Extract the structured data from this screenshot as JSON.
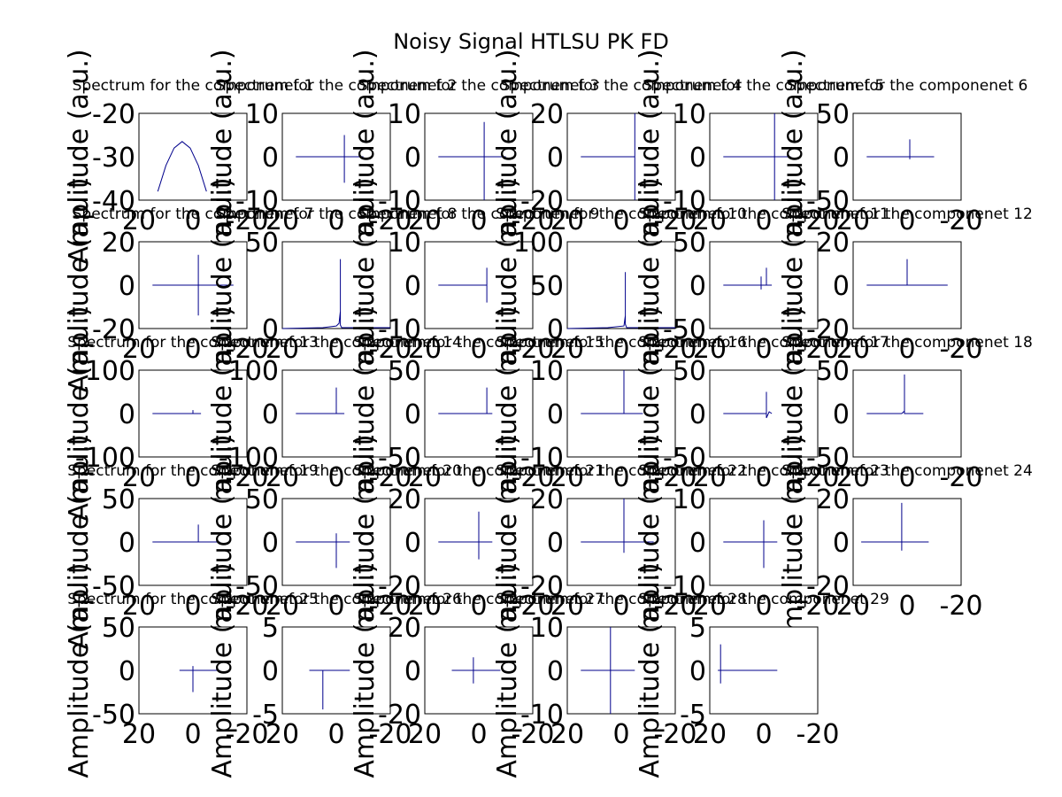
{
  "figure": {
    "title": "Noisy Signal HTLSU PK FD",
    "colors": {
      "line": "#00008B",
      "axes": "#000000",
      "background": "#ffffff"
    }
  },
  "chart_data": [
    {
      "type": "line",
      "title": "Spectrum for the componenet 1",
      "ylabel": "Amplitude (a.u.)",
      "xlim": [
        20,
        -20
      ],
      "xticks": [
        "20",
        "0",
        "-20"
      ],
      "ylim": [
        -40,
        -20
      ],
      "yticks": [
        "-20",
        "-30",
        "-40"
      ],
      "series": [
        {
          "x": [
            13,
            10,
            7,
            4,
            1,
            -2,
            -5
          ],
          "y": [
            -38,
            -32,
            -28,
            -26.5,
            -28,
            -32,
            -38
          ]
        }
      ]
    },
    {
      "type": "line",
      "title": "Spectrum for the componenet 2",
      "ylabel": "Amplitude (a.u.)",
      "xlim": [
        20,
        -20
      ],
      "xticks": [
        "20",
        "0",
        "-20"
      ],
      "ylim": [
        -10,
        10
      ],
      "yticks": [
        "10",
        "0",
        "-10"
      ],
      "series": [
        {
          "x": [
            15,
            -3,
            -3,
            -3,
            -3,
            -3,
            -10
          ],
          "y": [
            0,
            0,
            5,
            -6,
            0,
            0,
            0
          ]
        }
      ]
    },
    {
      "type": "line",
      "title": "Spectrum for the componenet 3",
      "ylabel": "Amplitude (a.u.)",
      "xlim": [
        20,
        -20
      ],
      "xticks": [
        "20",
        "0",
        "-20"
      ],
      "ylim": [
        -10,
        10
      ],
      "yticks": [
        "10",
        "0",
        "-10"
      ],
      "series": [
        {
          "x": [
            15,
            -2,
            -2,
            -2,
            -2,
            -2,
            -10
          ],
          "y": [
            0,
            0,
            8,
            -10,
            0,
            0,
            0
          ]
        }
      ]
    },
    {
      "type": "line",
      "title": "Spectrum for the componenet 4",
      "ylabel": "Amplitude (a.u.)",
      "xlim": [
        20,
        -20
      ],
      "xticks": [
        "20",
        "0",
        "-20"
      ],
      "ylim": [
        -20,
        20
      ],
      "yticks": [
        "20",
        "0",
        "-20"
      ],
      "series": [
        {
          "x": [
            15,
            -5,
            -5,
            -5,
            -5,
            -5
          ],
          "y": [
            0,
            0,
            20,
            -20,
            0,
            0
          ]
        }
      ]
    },
    {
      "type": "line",
      "title": "Spectrum for the componenet 5",
      "ylabel": "Amplitude (a.u.)",
      "xlim": [
        20,
        -20
      ],
      "xticks": [
        "20",
        "0",
        "-20"
      ],
      "ylim": [
        -10,
        10
      ],
      "yticks": [
        "10",
        "0",
        "-10"
      ],
      "series": [
        {
          "x": [
            15,
            -4,
            -4,
            -4,
            -4,
            -4,
            -10
          ],
          "y": [
            0,
            0,
            10,
            -10,
            0,
            0,
            0
          ]
        }
      ]
    },
    {
      "type": "line",
      "title": "Spectrum for the componenet 6",
      "ylabel": "Amplitude (a.u.)",
      "xlim": [
        20,
        -20
      ],
      "xticks": [
        "20",
        "0",
        "-20"
      ],
      "ylim": [
        -50,
        50
      ],
      "yticks": [
        "50",
        "0",
        "-50"
      ],
      "series": [
        {
          "x": [
            15,
            -1,
            -1,
            -1,
            -1,
            -1,
            -10
          ],
          "y": [
            0,
            0,
            20,
            -3,
            0,
            0,
            0
          ]
        }
      ]
    },
    {
      "type": "line",
      "title": "Spectrum for the componenet 7",
      "ylabel": "Amplitude (a.u.)",
      "xlim": [
        20,
        -20
      ],
      "xticks": [
        "20",
        "0",
        "-20"
      ],
      "ylim": [
        -20,
        20
      ],
      "yticks": [
        "20",
        "0",
        "-20"
      ],
      "series": [
        {
          "x": [
            15,
            -2,
            -2,
            -2,
            -2,
            -2,
            -15
          ],
          "y": [
            0,
            0,
            14,
            -14,
            0,
            0,
            0
          ]
        }
      ]
    },
    {
      "type": "line",
      "title": "Spectrum for the componenet 8",
      "ylabel": "Amplitude (a.u.)",
      "xlim": [
        20,
        -20
      ],
      "xticks": [
        "20",
        "0",
        "-20"
      ],
      "ylim": [
        0,
        50
      ],
      "yticks": [
        "50",
        "0"
      ],
      "series": [
        {
          "x": [
            20,
            5,
            0,
            -1,
            -1.5,
            -1.5,
            -1.5,
            -2,
            -20
          ],
          "y": [
            0,
            0.5,
            1.5,
            3,
            10,
            40,
            2,
            0.5,
            0.5
          ]
        }
      ]
    },
    {
      "type": "line",
      "title": "Spectrum for the componenet 9",
      "ylabel": "Amplitude (a.u.)",
      "xlim": [
        20,
        -20
      ],
      "xticks": [
        "20",
        "0",
        "-20"
      ],
      "ylim": [
        -10,
        10
      ],
      "yticks": [
        "10",
        "0",
        "-10"
      ],
      "series": [
        {
          "x": [
            15,
            -3,
            -3,
            -3,
            -3,
            -3
          ],
          "y": [
            0,
            0,
            4,
            -4,
            0,
            0
          ]
        }
      ]
    },
    {
      "type": "line",
      "title": "Spectrum for the componenet 10",
      "ylabel": "Amplitude (a.u.)",
      "xlim": [
        20,
        -20
      ],
      "xticks": [
        "20",
        "0",
        "-20"
      ],
      "ylim": [
        0,
        100
      ],
      "yticks": [
        "100",
        "50",
        "0"
      ],
      "series": [
        {
          "x": [
            20,
            5,
            -1,
            -1.5,
            -1.5,
            -1.5,
            -2,
            -20
          ],
          "y": [
            0,
            1,
            3,
            15,
            65,
            5,
            1,
            1
          ]
        }
      ]
    },
    {
      "type": "line",
      "title": "Spectrum for the componenet 11",
      "ylabel": "Amplitude (a.u.)",
      "xlim": [
        20,
        -20
      ],
      "xticks": [
        "20",
        "0",
        "-20"
      ],
      "ylim": [
        -50,
        50
      ],
      "yticks": [
        "50",
        "0",
        "-50"
      ],
      "series": [
        {
          "x": [
            15,
            3,
            1,
            1,
            1,
            1,
            -1,
            -1,
            -1,
            -3
          ],
          "y": [
            0,
            0,
            0,
            10,
            -5,
            0,
            0,
            20,
            0,
            0
          ]
        }
      ]
    },
    {
      "type": "line",
      "title": "Spectrum for the componenet 12",
      "ylabel": "Amplitude (a.u.)",
      "xlim": [
        20,
        -20
      ],
      "xticks": [
        "20",
        "0",
        "-20"
      ],
      "ylim": [
        -20,
        20
      ],
      "yticks": [
        "20",
        "0",
        "-20"
      ],
      "series": [
        {
          "x": [
            15,
            0,
            0,
            0,
            0,
            0,
            -15
          ],
          "y": [
            0,
            0,
            12,
            0,
            0,
            0,
            0
          ]
        }
      ]
    },
    {
      "type": "line",
      "title": "Spectrum for the componenet 13",
      "ylabel": "Amplitude (a.u.)",
      "xlim": [
        20,
        -20
      ],
      "xticks": [
        "20",
        "0",
        "-20"
      ],
      "ylim": [
        -100,
        100
      ],
      "yticks": [
        "100",
        "0",
        "-100"
      ],
      "series": [
        {
          "x": [
            15,
            0,
            0,
            0,
            -3
          ],
          "y": [
            0,
            0,
            8,
            0,
            0
          ]
        }
      ]
    },
    {
      "type": "line",
      "title": "Spectrum for the componenet 14",
      "ylabel": "Amplitude (a.u.)",
      "xlim": [
        20,
        -20
      ],
      "xticks": [
        "20",
        "0",
        "-20"
      ],
      "ylim": [
        -100,
        100
      ],
      "yticks": [
        "100",
        "0",
        "-100"
      ],
      "series": [
        {
          "x": [
            15,
            0,
            0,
            0,
            -3
          ],
          "y": [
            0,
            0,
            60,
            0,
            0
          ]
        }
      ]
    },
    {
      "type": "line",
      "title": "Spectrum for the componenet 15",
      "ylabel": "Amplitude (a.u.)",
      "xlim": [
        20,
        -20
      ],
      "xticks": [
        "20",
        "0",
        "-20"
      ],
      "ylim": [
        -50,
        50
      ],
      "yticks": [
        "50",
        "0",
        "-50"
      ],
      "series": [
        {
          "x": [
            15,
            -3,
            -3,
            -3,
            -5
          ],
          "y": [
            0,
            0,
            30,
            0,
            0
          ]
        }
      ]
    },
    {
      "type": "line",
      "title": "Spectrum for the componenet 16",
      "ylabel": "Amplitude (a.u.)",
      "xlim": [
        20,
        -20
      ],
      "xticks": [
        "20",
        "0",
        "-20"
      ],
      "ylim": [
        -10,
        10
      ],
      "yticks": [
        "10",
        "0",
        "-10"
      ],
      "series": [
        {
          "x": [
            15,
            -1,
            -1,
            -1,
            -8
          ],
          "y": [
            0,
            0,
            10,
            0,
            0
          ]
        }
      ]
    },
    {
      "type": "line",
      "title": "Spectrum for the componenet 17",
      "ylabel": "Amplitude (a.u.)",
      "xlim": [
        20,
        -20
      ],
      "xticks": [
        "20",
        "0",
        "-20"
      ],
      "ylim": [
        -50,
        50
      ],
      "yticks": [
        "50",
        "0",
        "-50"
      ],
      "series": [
        {
          "x": [
            15,
            0,
            -1,
            -1,
            -1,
            -2,
            -3
          ],
          "y": [
            0,
            0,
            0,
            25,
            -5,
            2,
            0
          ]
        }
      ]
    },
    {
      "type": "line",
      "title": "Spectrum for the componenet 18",
      "ylabel": "Amplitude (a.u.)",
      "xlim": [
        20,
        -20
      ],
      "xticks": [
        "20",
        "0",
        "-20"
      ],
      "ylim": [
        -50,
        50
      ],
      "yticks": [
        "50",
        "0",
        "-50"
      ],
      "series": [
        {
          "x": [
            15,
            2,
            1,
            1,
            1,
            1,
            0,
            -6
          ],
          "y": [
            0,
            0,
            3,
            45,
            5,
            0,
            0,
            0
          ]
        }
      ]
    },
    {
      "type": "line",
      "title": "Spectrum for the componenet 19",
      "ylabel": "Amplitude (a.u.)",
      "xlim": [
        20,
        -20
      ],
      "xticks": [
        "20",
        "0",
        "-20"
      ],
      "ylim": [
        -50,
        50
      ],
      "yticks": [
        "50",
        "0",
        "-50"
      ],
      "series": [
        {
          "x": [
            15,
            2,
            -2,
            -2,
            -2,
            -2,
            -10
          ],
          "y": [
            0,
            0,
            0,
            20,
            0,
            0,
            0
          ]
        }
      ]
    },
    {
      "type": "line",
      "title": "Spectrum for the componenet 20",
      "ylabel": "Amplitude (a.u.)",
      "xlim": [
        20,
        -20
      ],
      "xticks": [
        "20",
        "0",
        "-20"
      ],
      "ylim": [
        -50,
        50
      ],
      "yticks": [
        "50",
        "0",
        "-50"
      ],
      "series": [
        {
          "x": [
            15,
            3,
            0,
            0,
            0,
            0,
            -2,
            -5
          ],
          "y": [
            0,
            0,
            0,
            10,
            -30,
            0,
            0,
            0
          ]
        }
      ]
    },
    {
      "type": "line",
      "title": "Spectrum for the componenet 21",
      "ylabel": "Amplitude (a.u.)",
      "xlim": [
        20,
        -20
      ],
      "xticks": [
        "20",
        "0",
        "-20"
      ],
      "ylim": [
        -20,
        20
      ],
      "yticks": [
        "20",
        "0",
        "-20"
      ],
      "series": [
        {
          "x": [
            15,
            0,
            0,
            0,
            0,
            0,
            -5
          ],
          "y": [
            0,
            0,
            14,
            -8,
            0,
            0,
            0
          ]
        }
      ]
    },
    {
      "type": "line",
      "title": "Spectrum for the componenet 22",
      "ylabel": "Amplitude (a.u.)",
      "xlim": [
        20,
        -20
      ],
      "xticks": [
        "20",
        "0",
        "-20"
      ],
      "ylim": [
        -20,
        20
      ],
      "yticks": [
        "20",
        "0",
        "-20"
      ],
      "series": [
        {
          "x": [
            15,
            -1,
            -1,
            -1,
            -1,
            -1,
            -12
          ],
          "y": [
            0,
            0,
            20,
            -5,
            0,
            0,
            0
          ]
        }
      ]
    },
    {
      "type": "line",
      "title": "Spectrum for the componenet 23",
      "ylabel": "Amplitude (a.u.)",
      "xlim": [
        20,
        -20
      ],
      "xticks": [
        "20",
        "0",
        "-20"
      ],
      "ylim": [
        -10,
        10
      ],
      "yticks": [
        "10",
        "0",
        "-10"
      ],
      "series": [
        {
          "x": [
            15,
            0,
            0,
            0,
            0,
            0,
            -5
          ],
          "y": [
            0,
            0,
            5,
            -6,
            0,
            0,
            0
          ]
        }
      ]
    },
    {
      "type": "line",
      "title": "Spectrum for the componenet 24",
      "ylabel": "Amplitude (a.u.)",
      "xlim": [
        20,
        -20
      ],
      "xticks": [
        "20",
        "0",
        "-20"
      ],
      "ylim": [
        -20,
        20
      ],
      "yticks": [
        "20",
        "0",
        "-20"
      ],
      "series": [
        {
          "x": [
            17,
            2,
            2,
            2,
            2,
            2,
            -8
          ],
          "y": [
            0,
            0,
            18,
            -4,
            0,
            0,
            0
          ]
        }
      ]
    },
    {
      "type": "line",
      "title": "Spectrum for the componenet 25",
      "ylabel": "Amplitude (a.u.)",
      "xlim": [
        20,
        -20
      ],
      "xticks": [
        "20",
        "0",
        "-20"
      ],
      "ylim": [
        -50,
        50
      ],
      "yticks": [
        "50",
        "0",
        "-50"
      ],
      "series": [
        {
          "x": [
            5,
            0,
            0,
            0,
            0,
            0,
            -10
          ],
          "y": [
            0,
            0,
            5,
            -25,
            0,
            0,
            0
          ]
        }
      ]
    },
    {
      "type": "line",
      "title": "Spectrum for the componenet 26",
      "ylabel": "Amplitude (a.u.)",
      "xlim": [
        20,
        -20
      ],
      "xticks": [
        "20",
        "0",
        "-20"
      ],
      "ylim": [
        -5,
        5
      ],
      "yticks": [
        "5",
        "0",
        "-5"
      ],
      "series": [
        {
          "x": [
            10,
            5,
            5,
            5,
            5,
            -5
          ],
          "y": [
            0,
            0,
            0,
            -4.5,
            0,
            0
          ]
        }
      ]
    },
    {
      "type": "line",
      "title": "Spectrum for the componenet 27",
      "ylabel": "Amplitude (a.u.)",
      "xlim": [
        20,
        -20
      ],
      "xticks": [
        "20",
        "0",
        "-20"
      ],
      "ylim": [
        -20,
        20
      ],
      "yticks": [
        "20",
        "0",
        "-20"
      ],
      "series": [
        {
          "x": [
            10,
            2,
            2,
            2,
            2,
            2,
            -8
          ],
          "y": [
            0,
            0,
            6,
            -6,
            0,
            0,
            0
          ]
        }
      ]
    },
    {
      "type": "line",
      "title": "Spectrum for the componenet 28",
      "ylabel": "Amplitude (a.u.)",
      "xlim": [
        20,
        -20
      ],
      "xticks": [
        "20",
        "0",
        "-20"
      ],
      "ylim": [
        -10,
        10
      ],
      "yticks": [
        "10",
        "0",
        "-10"
      ],
      "series": [
        {
          "x": [
            15,
            4,
            4,
            4,
            4,
            4,
            -5
          ],
          "y": [
            0,
            0,
            10,
            -10,
            0,
            0,
            0
          ]
        }
      ]
    },
    {
      "type": "line",
      "title": "Spectrum for the componenet 29",
      "ylabel": "Amplitude (a.u.)",
      "xlim": [
        20,
        -20
      ],
      "xticks": [
        "20",
        "0",
        "-20"
      ],
      "ylim": [
        -5,
        5
      ],
      "yticks": [
        "5",
        "0",
        "-5"
      ],
      "series": [
        {
          "x": [
            17,
            16,
            16,
            16,
            16,
            16,
            -5
          ],
          "y": [
            0,
            0,
            3,
            -1.5,
            0,
            0,
            0
          ]
        }
      ]
    }
  ]
}
